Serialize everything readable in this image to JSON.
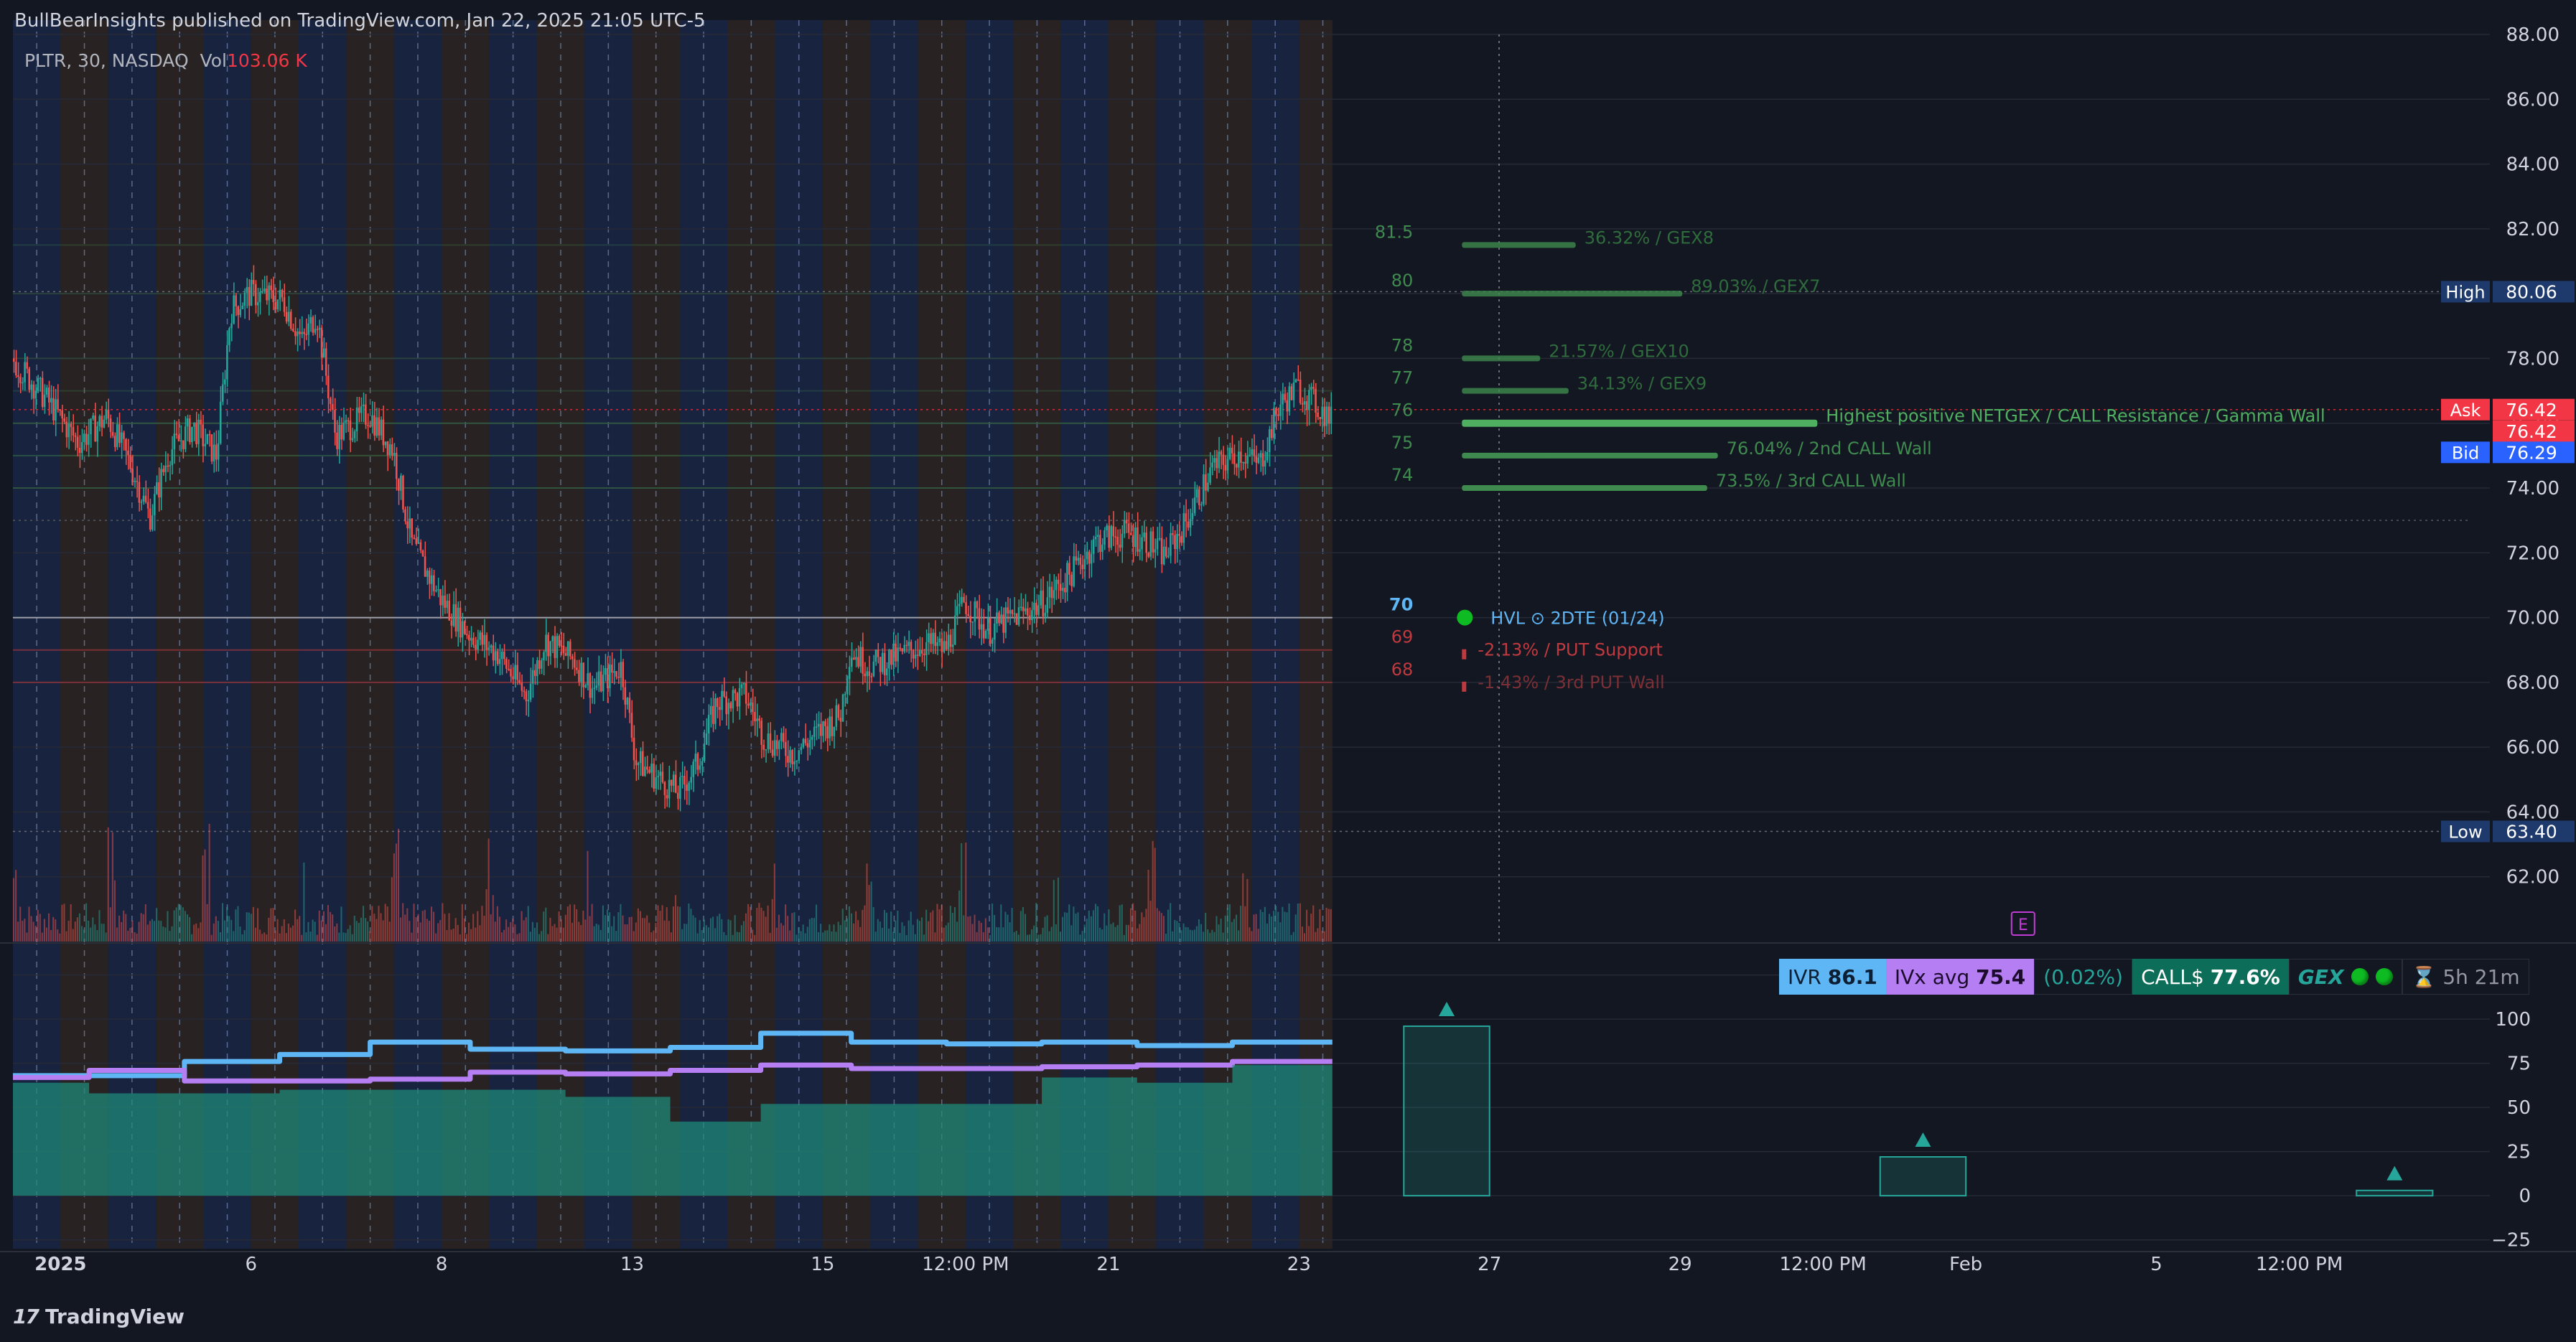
{
  "header": {
    "publisher": "BullBearInsights published on TradingView.com, Jan 22, 2025 21:05 UTC-5"
  },
  "symbol": {
    "name": "PLTR, 30, NASDAQ",
    "vol_label": "Vol",
    "vol_value": "103.06 K"
  },
  "footer": {
    "brand": "TradingView"
  },
  "colors": {
    "up": "#26a69a",
    "down": "#ef5350",
    "gex": "#3f8a4e",
    "put": "#c0393f",
    "hvl": "#b2b5be",
    "ivr": "#5fb6f5",
    "ivx": "#b57ef2"
  },
  "price_badges": [
    {
      "label": "High",
      "value": "80.06",
      "price": 80.06,
      "kind": "hl"
    },
    {
      "label": "Ask",
      "value": "76.42",
      "price": 76.42,
      "kind": "ask"
    },
    {
      "label": "",
      "value": "76.42",
      "price": 75.75,
      "kind": "last"
    },
    {
      "label": "Bid",
      "value": "76.29",
      "price": 75.1,
      "kind": "bid"
    },
    {
      "label": "Low",
      "value": "63.40",
      "price": 63.4,
      "kind": "hl"
    }
  ],
  "levels": [
    {
      "strike": "81.5",
      "price": 81.5,
      "bar": 0.32,
      "text": "36.32% / GEX8",
      "kind": "gex"
    },
    {
      "strike": "80",
      "price": 80.0,
      "bar": 0.62,
      "text": "89.03% / GEX7",
      "kind": "gex"
    },
    {
      "strike": "78",
      "price": 78.0,
      "bar": 0.22,
      "text": "21.57% / GEX10",
      "kind": "gex"
    },
    {
      "strike": "77",
      "price": 77.0,
      "bar": 0.3,
      "text": "34.13% / GEX9",
      "kind": "gex"
    },
    {
      "strike": "76",
      "price": 76.0,
      "bar": 1.0,
      "text": "Highest positive NETGEX / CALL Resistance / Gamma Wall",
      "kind": "gex-main"
    },
    {
      "strike": "75",
      "price": 75.0,
      "bar": 0.72,
      "text": "76.04% / 2nd CALL Wall",
      "kind": "gex"
    },
    {
      "strike": "74",
      "price": 74.0,
      "bar": 0.69,
      "text": "73.5% / 3rd CALL Wall",
      "kind": "gex"
    },
    {
      "strike": "70",
      "price": 70.0,
      "bar": 0,
      "text": "HVL ⊙ 2DTE (01/24)",
      "kind": "hvl"
    },
    {
      "strike": "69",
      "price": 69.0,
      "bar": 0.01,
      "text": "-2.13% / PUT Support",
      "kind": "put"
    },
    {
      "strike": "68",
      "price": 68.0,
      "bar": 0.01,
      "text": "-1.43% / 3rd PUT Wall",
      "kind": "put"
    }
  ],
  "chart_data": {
    "type": "candlestick",
    "symbol": "PLTR",
    "interval": "30",
    "exchange": "NASDAQ",
    "ylim": [
      60,
      88
    ],
    "price_ticks": [
      "88.00",
      "86.00",
      "84.00",
      "82.00",
      "80.00",
      "78.00",
      "76.00",
      "74.00",
      "72.00",
      "70.00",
      "68.00",
      "66.00",
      "64.00",
      "62.00"
    ],
    "x_ticks": [
      {
        "label": "2025",
        "x": 0.5
      },
      {
        "label": "6",
        "x": 2.5
      },
      {
        "label": "8",
        "x": 4.5
      },
      {
        "label": "13",
        "x": 6.5
      },
      {
        "label": "15",
        "x": 8.5
      },
      {
        "label": "12:00 PM",
        "x": 10.0
      },
      {
        "label": "21",
        "x": 11.5
      },
      {
        "label": "23",
        "x": 13.5
      },
      {
        "label": "27",
        "x": 15.5
      },
      {
        "label": "29",
        "x": 17.5
      },
      {
        "label": "12:00 PM",
        "x": 19.0
      },
      {
        "label": "Feb",
        "x": 20.5
      },
      {
        "label": "5",
        "x": 22.5
      },
      {
        "label": "12:00 PM",
        "x": 24.0
      }
    ],
    "price_path": [
      [
        0.0,
        78.0
      ],
      [
        0.35,
        76.8
      ],
      [
        0.7,
        75.4
      ],
      [
        1.0,
        76.2
      ],
      [
        1.25,
        74.7
      ],
      [
        1.45,
        73.1
      ],
      [
        1.65,
        75.1
      ],
      [
        1.9,
        75.9
      ],
      [
        2.15,
        75.0
      ],
      [
        2.3,
        79.5
      ],
      [
        2.5,
        80.0
      ],
      [
        2.85,
        79.8
      ],
      [
        3.05,
        78.5
      ],
      [
        3.2,
        79.4
      ],
      [
        3.4,
        75.6
      ],
      [
        3.75,
        76.3
      ],
      [
        4.0,
        75.2
      ],
      [
        4.2,
        72.3
      ],
      [
        4.5,
        70.6
      ],
      [
        4.8,
        69.5
      ],
      [
        5.1,
        68.9
      ],
      [
        5.4,
        67.6
      ],
      [
        5.6,
        69.3
      ],
      [
        5.9,
        68.7
      ],
      [
        6.1,
        67.8
      ],
      [
        6.4,
        68.5
      ],
      [
        6.55,
        65.6
      ],
      [
        6.8,
        65.0
      ],
      [
        7.0,
        64.6
      ],
      [
        7.2,
        65.5
      ],
      [
        7.4,
        67.4
      ],
      [
        7.7,
        67.6
      ],
      [
        7.9,
        66.3
      ],
      [
        8.2,
        65.8
      ],
      [
        8.45,
        66.4
      ],
      [
        8.7,
        67.0
      ],
      [
        8.8,
        69.0
      ],
      [
        9.0,
        68.5
      ],
      [
        9.3,
        68.8
      ],
      [
        9.6,
        69.2
      ],
      [
        9.8,
        69.0
      ],
      [
        10.0,
        70.5
      ],
      [
        10.25,
        69.6
      ],
      [
        10.5,
        70.0
      ],
      [
        10.8,
        70.4
      ],
      [
        11.1,
        71.3
      ],
      [
        11.4,
        72.4
      ],
      [
        11.7,
        72.6
      ],
      [
        11.9,
        72.4
      ],
      [
        12.1,
        71.9
      ],
      [
        12.3,
        72.8
      ],
      [
        12.6,
        74.6
      ],
      [
        12.9,
        75.1
      ],
      [
        13.1,
        74.7
      ],
      [
        13.3,
        76.5
      ],
      [
        13.5,
        77.1
      ],
      [
        13.75,
        76.4
      ],
      [
        13.85,
        76.1
      ]
    ],
    "osc_ylim": [
      -30,
      135
    ],
    "osc_ticks": [
      "125",
      "100",
      "75",
      "50",
      "25",
      "0",
      "−25"
    ],
    "series": [
      {
        "name": "IVR",
        "value": "86.1",
        "color": "#5fb6f5",
        "steps": [
          [
            0,
            68
          ],
          [
            1.8,
            76
          ],
          [
            2.8,
            80
          ],
          [
            3.75,
            87
          ],
          [
            4.8,
            83
          ],
          [
            5.8,
            82
          ],
          [
            6.9,
            84
          ],
          [
            7.85,
            92
          ],
          [
            8.8,
            87
          ],
          [
            9.8,
            86
          ],
          [
            10.8,
            87
          ],
          [
            11.8,
            85
          ],
          [
            12.8,
            87
          ],
          [
            13.85,
            87
          ]
        ]
      },
      {
        "name": "IVx avg",
        "value": "75.4",
        "color": "#b57ef2",
        "steps": [
          [
            0,
            67
          ],
          [
            0.8,
            71
          ],
          [
            1.8,
            65
          ],
          [
            2.8,
            65
          ],
          [
            3.75,
            66
          ],
          [
            4.8,
            70
          ],
          [
            5.8,
            69
          ],
          [
            6.9,
            71
          ],
          [
            7.85,
            74
          ],
          [
            8.8,
            72
          ],
          [
            9.8,
            72
          ],
          [
            10.8,
            73
          ],
          [
            11.8,
            74
          ],
          [
            12.8,
            76
          ],
          [
            13.85,
            76
          ]
        ]
      },
      {
        "name": "area",
        "color": "#1f8c7c",
        "steps": [
          [
            0,
            64
          ],
          [
            0.8,
            58
          ],
          [
            1.8,
            58
          ],
          [
            2.8,
            60
          ],
          [
            3.75,
            60
          ],
          [
            4.8,
            60
          ],
          [
            5.8,
            56
          ],
          [
            6.9,
            42
          ],
          [
            7.85,
            52
          ],
          [
            8.8,
            52
          ],
          [
            9.8,
            52
          ],
          [
            10.8,
            67
          ],
          [
            11.8,
            64
          ],
          [
            12.8,
            74
          ],
          [
            13.85,
            74
          ]
        ]
      }
    ],
    "forecast_bars": [
      {
        "x0": 14.6,
        "x1": 15.5,
        "value": 96
      },
      {
        "x0": 19.6,
        "x1": 20.5,
        "value": 22
      },
      {
        "x0": 24.6,
        "x1": 25.4,
        "value": 3
      }
    ],
    "earnings_marker": {
      "label": "E",
      "x": 21.1
    }
  },
  "indicators": {
    "ivr_label": "IVR",
    "ivr_value": "86.1",
    "ivx_label": "IVx avg",
    "ivx_value": "75.4",
    "change": "(0.02%)",
    "call_label": "CALL$",
    "call_value": "77.6%",
    "gex_label": "GEX",
    "time_left": "5h 21m",
    "hourglass_icon": "⌛"
  }
}
